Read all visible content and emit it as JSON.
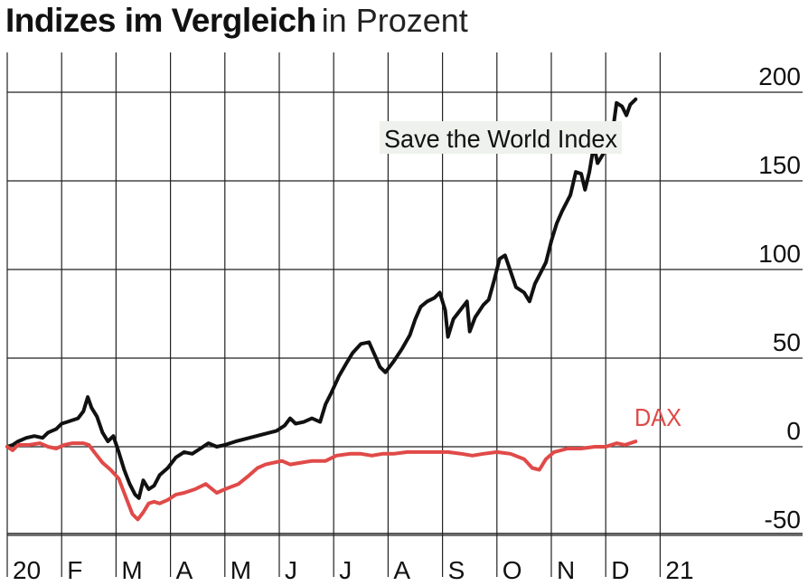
{
  "chart_data": {
    "type": "line",
    "title": "Indizes im Vergleich",
    "subtitle": "in Prozent",
    "x_tick_labels": [
      "20",
      "F",
      "M",
      "A",
      "M",
      "J",
      "J",
      "A",
      "S",
      "O",
      "N",
      "D",
      "21"
    ],
    "ylim": [
      -60,
      210
    ],
    "yticks": [
      200,
      150,
      100,
      50,
      0,
      -50
    ],
    "ytick_labels": [
      "200",
      "150",
      "100",
      "50",
      "0",
      "-50"
    ],
    "grid": true,
    "series": [
      {
        "name": "Save the World Index",
        "color": "#111111",
        "points": [
          [
            0.0,
            0
          ],
          [
            0.1,
            1
          ],
          [
            0.2,
            3
          ],
          [
            0.35,
            5
          ],
          [
            0.5,
            6
          ],
          [
            0.65,
            5
          ],
          [
            0.75,
            8
          ],
          [
            0.9,
            10
          ],
          [
            1.0,
            13
          ],
          [
            1.1,
            14
          ],
          [
            1.2,
            15
          ],
          [
            1.3,
            16
          ],
          [
            1.4,
            20
          ],
          [
            1.48,
            28
          ],
          [
            1.55,
            22
          ],
          [
            1.65,
            17
          ],
          [
            1.75,
            8
          ],
          [
            1.85,
            3
          ],
          [
            1.95,
            6
          ],
          [
            2.05,
            -3
          ],
          [
            2.15,
            -13
          ],
          [
            2.25,
            -21
          ],
          [
            2.35,
            -27
          ],
          [
            2.42,
            -29
          ],
          [
            2.5,
            -19
          ],
          [
            2.6,
            -24
          ],
          [
            2.7,
            -22
          ],
          [
            2.8,
            -16
          ],
          [
            2.95,
            -12
          ],
          [
            3.1,
            -6
          ],
          [
            3.25,
            -3
          ],
          [
            3.4,
            -4
          ],
          [
            3.55,
            -1
          ],
          [
            3.7,
            2
          ],
          [
            3.85,
            0
          ],
          [
            4.0,
            1
          ],
          [
            4.2,
            3
          ],
          [
            4.45,
            5
          ],
          [
            4.7,
            7
          ],
          [
            4.95,
            9
          ],
          [
            5.1,
            12
          ],
          [
            5.2,
            16
          ],
          [
            5.3,
            13
          ],
          [
            5.45,
            14
          ],
          [
            5.6,
            16
          ],
          [
            5.75,
            14
          ],
          [
            5.85,
            24
          ],
          [
            5.95,
            30
          ],
          [
            6.1,
            40
          ],
          [
            6.25,
            48
          ],
          [
            6.35,
            53
          ],
          [
            6.5,
            58
          ],
          [
            6.65,
            59
          ],
          [
            6.75,
            52
          ],
          [
            6.85,
            45
          ],
          [
            6.95,
            42
          ],
          [
            7.1,
            48
          ],
          [
            7.25,
            55
          ],
          [
            7.4,
            63
          ],
          [
            7.5,
            72
          ],
          [
            7.6,
            79
          ],
          [
            7.72,
            82
          ],
          [
            7.85,
            84
          ],
          [
            7.95,
            87
          ],
          [
            8.05,
            77
          ],
          [
            8.1,
            62
          ],
          [
            8.2,
            72
          ],
          [
            8.35,
            78
          ],
          [
            8.45,
            82
          ],
          [
            8.5,
            65
          ],
          [
            8.6,
            73
          ],
          [
            8.75,
            80
          ],
          [
            8.85,
            83
          ],
          [
            8.95,
            94
          ],
          [
            9.05,
            106
          ],
          [
            9.15,
            108
          ],
          [
            9.25,
            99
          ],
          [
            9.35,
            90
          ],
          [
            9.5,
            87
          ],
          [
            9.6,
            82
          ],
          [
            9.7,
            92
          ],
          [
            9.8,
            98
          ],
          [
            9.9,
            104
          ],
          [
            10.0,
            116
          ],
          [
            10.1,
            126
          ],
          [
            10.2,
            133
          ],
          [
            10.35,
            142
          ],
          [
            10.45,
            155
          ],
          [
            10.55,
            154
          ],
          [
            10.62,
            145
          ],
          [
            10.7,
            155
          ],
          [
            10.78,
            170
          ],
          [
            10.85,
            160
          ],
          [
            10.95,
            165
          ],
          [
            11.05,
            182
          ],
          [
            11.12,
            176
          ],
          [
            11.2,
            194
          ],
          [
            11.3,
            192
          ],
          [
            11.38,
            187
          ],
          [
            11.45,
            193
          ],
          [
            11.55,
            196
          ]
        ]
      },
      {
        "name": "DAX",
        "color": "#e04a48",
        "points": [
          [
            0.0,
            0
          ],
          [
            0.1,
            -2
          ],
          [
            0.2,
            1
          ],
          [
            0.4,
            1
          ],
          [
            0.6,
            2
          ],
          [
            0.75,
            0
          ],
          [
            0.9,
            -1
          ],
          [
            1.05,
            1
          ],
          [
            1.2,
            2
          ],
          [
            1.4,
            2
          ],
          [
            1.5,
            1
          ],
          [
            1.6,
            -3
          ],
          [
            1.75,
            -9
          ],
          [
            1.9,
            -13
          ],
          [
            2.05,
            -18
          ],
          [
            2.2,
            -30
          ],
          [
            2.3,
            -38
          ],
          [
            2.4,
            -41
          ],
          [
            2.5,
            -37
          ],
          [
            2.6,
            -32
          ],
          [
            2.7,
            -31
          ],
          [
            2.8,
            -32
          ],
          [
            2.95,
            -30
          ],
          [
            3.1,
            -27
          ],
          [
            3.25,
            -26
          ],
          [
            3.45,
            -24
          ],
          [
            3.65,
            -21
          ],
          [
            3.85,
            -26
          ],
          [
            4.0,
            -24
          ],
          [
            4.25,
            -21
          ],
          [
            4.45,
            -16
          ],
          [
            4.6,
            -12
          ],
          [
            4.75,
            -10
          ],
          [
            4.9,
            -9
          ],
          [
            5.05,
            -8
          ],
          [
            5.2,
            -10
          ],
          [
            5.4,
            -9
          ],
          [
            5.6,
            -8
          ],
          [
            5.85,
            -8
          ],
          [
            6.05,
            -5
          ],
          [
            6.3,
            -4
          ],
          [
            6.5,
            -4
          ],
          [
            6.7,
            -5
          ],
          [
            6.9,
            -4
          ],
          [
            7.1,
            -4
          ],
          [
            7.35,
            -3
          ],
          [
            7.6,
            -3
          ],
          [
            7.85,
            -3
          ],
          [
            8.1,
            -3
          ],
          [
            8.35,
            -4
          ],
          [
            8.55,
            -5
          ],
          [
            8.75,
            -4
          ],
          [
            9.0,
            -3
          ],
          [
            9.25,
            -4
          ],
          [
            9.5,
            -7
          ],
          [
            9.65,
            -12
          ],
          [
            9.78,
            -13
          ],
          [
            9.9,
            -7
          ],
          [
            10.05,
            -3
          ],
          [
            10.3,
            -1
          ],
          [
            10.55,
            -1
          ],
          [
            10.8,
            0
          ],
          [
            11.0,
            0
          ],
          [
            11.2,
            2
          ],
          [
            11.35,
            1
          ],
          [
            11.45,
            2
          ],
          [
            11.55,
            3
          ]
        ]
      }
    ],
    "annotations": [
      {
        "text": "Save the World Index",
        "series": "Save the World Index"
      },
      {
        "text": "DAX",
        "series": "DAX"
      }
    ]
  }
}
